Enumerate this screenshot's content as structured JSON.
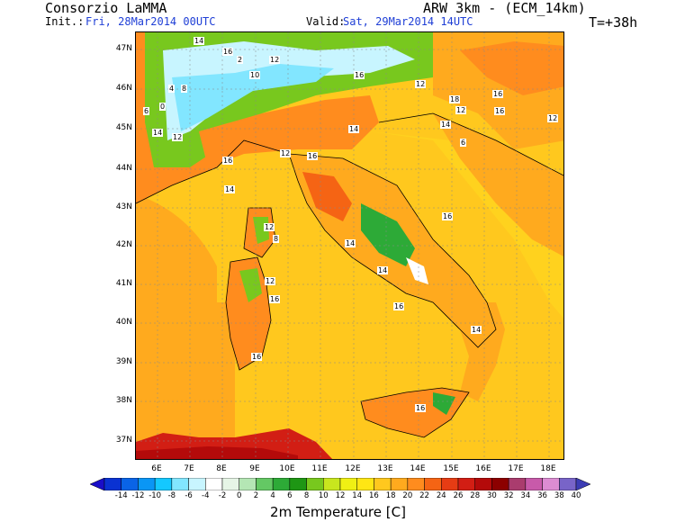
{
  "header": {
    "org": "Consorzio LaMMA",
    "model": "ARW 3km - (ECM_14km)",
    "init_label": "Init.:",
    "init_value": "Fri, 28Mar2014 00UTC",
    "valid_label": "Valid:",
    "valid_value": "Sat, 29Mar2014 14UTC",
    "forecast_step": "T=+38h"
  },
  "axes": {
    "lat_labels": [
      "47N",
      "46N",
      "45N",
      "44N",
      "43N",
      "42N",
      "41N",
      "40N",
      "39N",
      "38N",
      "37N"
    ],
    "lon_labels": [
      "6E",
      "7E",
      "8E",
      "9E",
      "10E",
      "11E",
      "12E",
      "13E",
      "14E",
      "15E",
      "16E",
      "17E",
      "18E"
    ]
  },
  "legend": {
    "title": "2m Temperature [C]",
    "ticks": [
      "-14",
      "-12",
      "-10",
      "-8",
      "-6",
      "-4",
      "-2",
      "0",
      "2",
      "4",
      "6",
      "8",
      "10",
      "12",
      "14",
      "16",
      "18",
      "20",
      "22",
      "24",
      "26",
      "28",
      "30",
      "32",
      "34",
      "36",
      "38",
      "40"
    ],
    "colors": [
      "#1a0ec8",
      "#0a32d2",
      "#0a64e6",
      "#0a96f5",
      "#14c8ff",
      "#82e6ff",
      "#c8f5ff",
      "#ffffff",
      "#e6f5e6",
      "#b4e6b4",
      "#64c864",
      "#2daa37",
      "#1e9614",
      "#78c81e",
      "#c8e61e",
      "#f0f014",
      "#ffe614",
      "#ffc81e",
      "#ffaa1e",
      "#ff8c1e",
      "#f56414",
      "#e63c14",
      "#d21e14",
      "#b40a0a",
      "#8c0000",
      "#aa3c6e",
      "#c85aaa",
      "#dc8cd2",
      "#7864c8",
      "#3c3cb4"
    ]
  },
  "value_labels": [
    "14",
    "16",
    "2",
    "12",
    "10",
    "8",
    "4",
    "0",
    "6",
    "14",
    "16",
    "12",
    "18",
    "16",
    "12",
    "14",
    "16",
    "12",
    "6",
    "14",
    "8",
    "12",
    "12",
    "16",
    "12",
    "16",
    "14",
    "16",
    "14",
    "16",
    "12",
    "16",
    "14",
    "16",
    "14",
    "16"
  ]
}
